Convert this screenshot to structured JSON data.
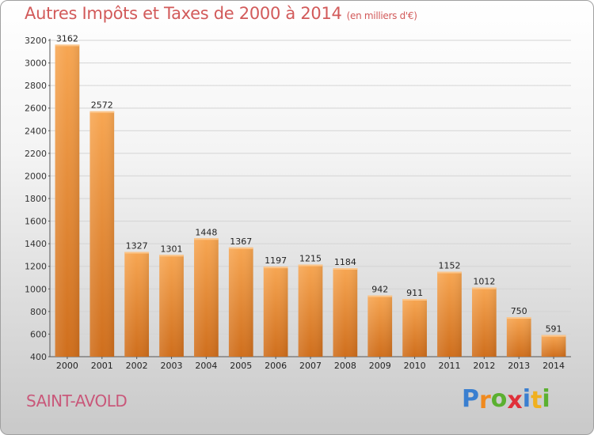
{
  "chart_data": {
    "type": "bar",
    "title": "Autres Impôts et Taxes de 2000 à 2014",
    "subtitle": "(en milliers d'€)",
    "categories": [
      "2000",
      "2001",
      "2002",
      "2003",
      "2004",
      "2005",
      "2006",
      "2007",
      "2008",
      "2009",
      "2010",
      "2011",
      "2012",
      "2013",
      "2014"
    ],
    "values": [
      3162,
      2572,
      1327,
      1301,
      1448,
      1367,
      1197,
      1215,
      1184,
      942,
      911,
      1152,
      1012,
      750,
      591
    ],
    "ylim": [
      400,
      3200
    ],
    "yticks": [
      400,
      600,
      800,
      1000,
      1200,
      1400,
      1600,
      1800,
      2000,
      2200,
      2400,
      2600,
      2800,
      3000,
      3200
    ],
    "grid": true,
    "bar_color": "#f0913a",
    "bar_color_dark": "#d9731c"
  },
  "footer": {
    "city": "SAINT-AVOLD",
    "brand_letters": [
      "P",
      "r",
      "o",
      "x",
      "i",
      "t",
      "i"
    ],
    "brand_colors": [
      "#3a7fd0",
      "#f08a1e",
      "#5bb030",
      "#e0303a",
      "#3a7fd0",
      "#f0b01e",
      "#5bb030"
    ]
  }
}
